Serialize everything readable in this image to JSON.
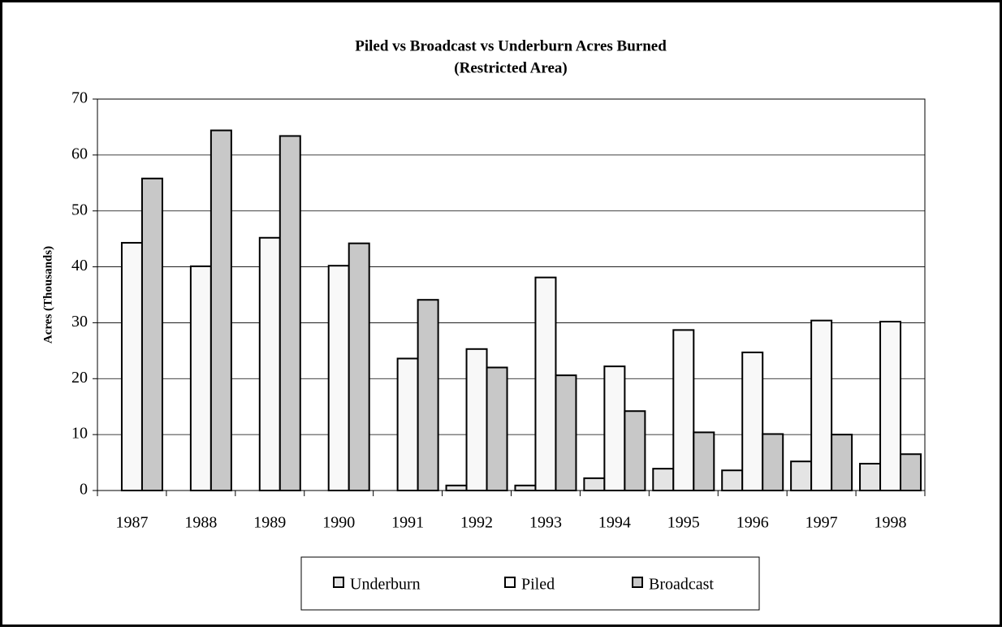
{
  "chart_data": {
    "type": "bar",
    "title": "Piled vs Broadcast vs Underburn Acres Burned",
    "subtitle": "(Restricted Area)",
    "y_label": "Acres (Thousands)",
    "categories": [
      "1987",
      "1988",
      "1989",
      "1990",
      "1991",
      "1992",
      "1993",
      "1994",
      "1995",
      "1996",
      "1997",
      "1998"
    ],
    "series": [
      {
        "name": "Underburn",
        "color": "#e4e4e4",
        "values": [
          0,
          0,
          0,
          0,
          0,
          0.9,
          0.9,
          2.2,
          3.9,
          3.6,
          5.2,
          4.8
        ]
      },
      {
        "name": "Piled",
        "color": "#f8f8f8",
        "values": [
          44.3,
          40.1,
          45.2,
          40.2,
          23.6,
          25.3,
          38.1,
          22.2,
          28.7,
          24.7,
          30.4,
          30.2
        ]
      },
      {
        "name": "Broadcast",
        "color": "#c8c8c8",
        "values": [
          55.8,
          64.4,
          63.4,
          44.2,
          34.1,
          22.0,
          20.6,
          14.2,
          10.4,
          10.1,
          10.0,
          6.5
        ]
      }
    ],
    "ylim": [
      0,
      70
    ],
    "yticks": [
      0,
      10,
      20,
      30,
      40,
      50,
      60,
      70
    ],
    "grid": true,
    "legend": "bottom"
  }
}
